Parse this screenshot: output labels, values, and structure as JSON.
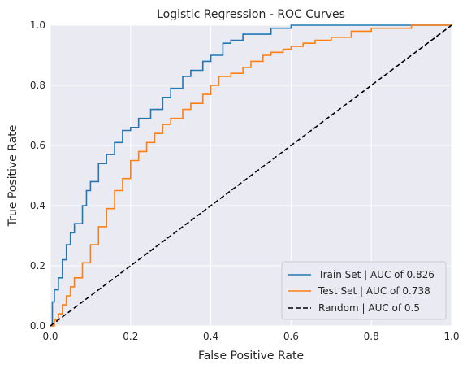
{
  "chart_data": {
    "type": "line",
    "title": "Logistic Regression - ROC Curves",
    "xlabel": "False Positive Rate",
    "ylabel": "True Positive Rate",
    "xlim": [
      0,
      1
    ],
    "ylim": [
      0,
      1
    ],
    "xticks": [
      "0.0",
      "0.2",
      "0.4",
      "0.6",
      "0.8",
      "1.0"
    ],
    "yticks": [
      "0.0",
      "0.2",
      "0.4",
      "0.6",
      "0.8",
      "1.0"
    ],
    "grid": true,
    "legend_position": "bottom-right",
    "series": [
      {
        "name": "Train Set | AUC of 0.826",
        "color": "#1f77b4",
        "style": "solid",
        "x": [
          0,
          0.005,
          0.01,
          0.02,
          0.03,
          0.04,
          0.05,
          0.06,
          0.08,
          0.09,
          0.1,
          0.12,
          0.14,
          0.16,
          0.18,
          0.2,
          0.22,
          0.25,
          0.28,
          0.3,
          0.33,
          0.35,
          0.38,
          0.4,
          0.43,
          0.45,
          0.48,
          0.5,
          0.55,
          0.58,
          0.6,
          0.65,
          0.7,
          0.75,
          0.8,
          0.82,
          1.0
        ],
        "y": [
          0,
          0.08,
          0.12,
          0.16,
          0.22,
          0.27,
          0.31,
          0.34,
          0.4,
          0.45,
          0.48,
          0.54,
          0.57,
          0.61,
          0.65,
          0.66,
          0.69,
          0.72,
          0.76,
          0.79,
          0.83,
          0.85,
          0.88,
          0.9,
          0.94,
          0.95,
          0.97,
          0.97,
          0.99,
          0.99,
          1.0,
          1.0,
          1.0,
          1.0,
          1.0,
          1.0,
          1.0
        ]
      },
      {
        "name": "Test Set | AUC of 0.738",
        "color": "#ff7f0e",
        "style": "solid",
        "x": [
          0,
          0.01,
          0.02,
          0.03,
          0.04,
          0.05,
          0.06,
          0.08,
          0.1,
          0.12,
          0.14,
          0.16,
          0.18,
          0.2,
          0.22,
          0.24,
          0.26,
          0.28,
          0.3,
          0.33,
          0.35,
          0.38,
          0.4,
          0.42,
          0.45,
          0.48,
          0.5,
          0.53,
          0.55,
          0.58,
          0.6,
          0.63,
          0.66,
          0.7,
          0.75,
          0.8,
          0.85,
          0.9,
          0.93,
          1.0
        ],
        "y": [
          0,
          0.02,
          0.04,
          0.07,
          0.1,
          0.13,
          0.16,
          0.21,
          0.27,
          0.33,
          0.39,
          0.45,
          0.49,
          0.55,
          0.58,
          0.61,
          0.64,
          0.67,
          0.69,
          0.72,
          0.74,
          0.77,
          0.8,
          0.83,
          0.84,
          0.86,
          0.88,
          0.9,
          0.91,
          0.92,
          0.93,
          0.94,
          0.95,
          0.96,
          0.98,
          0.99,
          0.99,
          1.0,
          1.0,
          1.0
        ]
      },
      {
        "name": "Random | AUC of 0.5",
        "color": "#000000",
        "style": "dashed",
        "x": [
          0,
          1
        ],
        "y": [
          0,
          1
        ]
      }
    ]
  }
}
